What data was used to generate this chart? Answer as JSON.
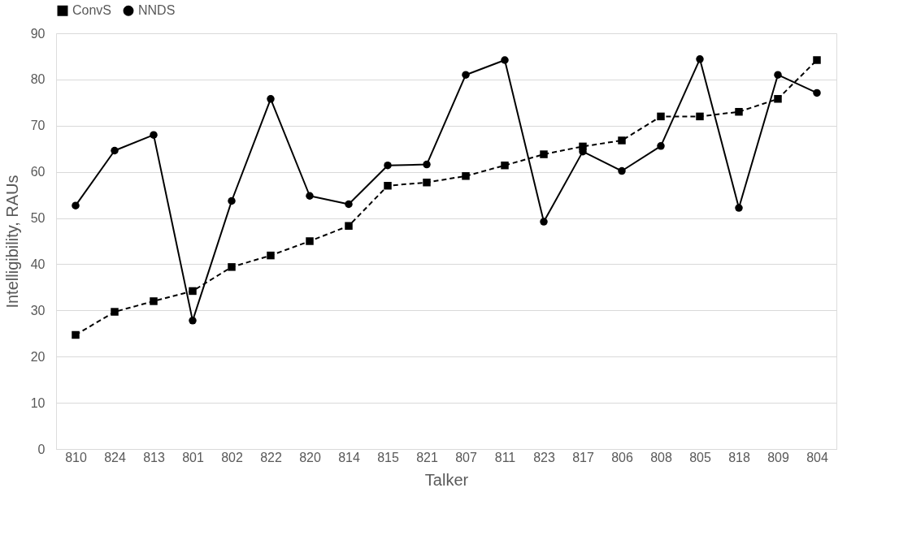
{
  "chart_data": {
    "type": "line",
    "xlabel": "Talker",
    "ylabel": "Intelligibility, RAUs",
    "categories": [
      "810",
      "824",
      "813",
      "801",
      "802",
      "822",
      "820",
      "814",
      "815",
      "821",
      "807",
      "811",
      "823",
      "817",
      "806",
      "808",
      "805",
      "818",
      "809",
      "804"
    ],
    "series": [
      {
        "name": "ConvS",
        "color": "#000000",
        "marker": "square",
        "line_style": "dashed",
        "values": [
          24.7,
          29.7,
          32,
          34.2,
          39.4,
          41.9,
          45,
          48.3,
          57,
          57.7,
          59.1,
          61.4,
          63.8,
          65.5,
          66.8,
          72,
          72,
          73,
          75.8,
          84.2
        ]
      },
      {
        "name": "NNDS",
        "color": "#000000",
        "marker": "circle",
        "line_style": "solid",
        "values": [
          52.7,
          64.6,
          68,
          27.8,
          53.7,
          75.8,
          54.8,
          53,
          61.4,
          61.6,
          81,
          84.2,
          49.2,
          64.4,
          60.2,
          65.6,
          84.4,
          52.2,
          81,
          77.1
        ]
      }
    ],
    "ylim": [
      0,
      90
    ],
    "yticks": [
      0,
      10,
      20,
      30,
      40,
      50,
      60,
      70,
      80,
      90
    ],
    "grid": "y",
    "legend": "top"
  }
}
